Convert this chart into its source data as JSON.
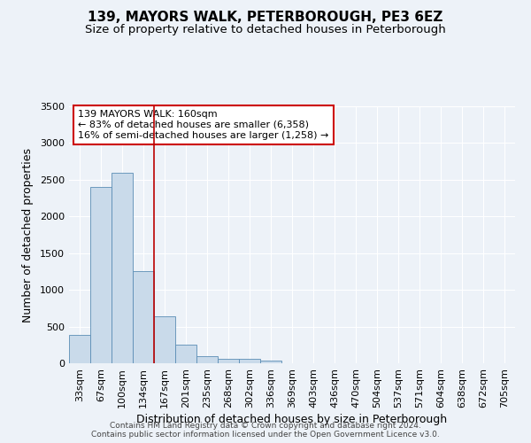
{
  "title": "139, MAYORS WALK, PETERBOROUGH, PE3 6EZ",
  "subtitle": "Size of property relative to detached houses in Peterborough",
  "xlabel": "Distribution of detached houses by size in Peterborough",
  "ylabel": "Number of detached properties",
  "footer_line1": "Contains HM Land Registry data © Crown copyright and database right 2024.",
  "footer_line2": "Contains public sector information licensed under the Open Government Licence v3.0.",
  "categories": [
    "33sqm",
    "67sqm",
    "100sqm",
    "134sqm",
    "167sqm",
    "201sqm",
    "235sqm",
    "268sqm",
    "302sqm",
    "336sqm",
    "369sqm",
    "403sqm",
    "436sqm",
    "470sqm",
    "504sqm",
    "537sqm",
    "571sqm",
    "604sqm",
    "638sqm",
    "672sqm",
    "705sqm"
  ],
  "values": [
    390,
    2400,
    2600,
    1250,
    640,
    255,
    100,
    65,
    55,
    40,
    0,
    0,
    0,
    0,
    0,
    0,
    0,
    0,
    0,
    0,
    0
  ],
  "bar_color": "#c9daea",
  "bar_edge_color": "#5b8db5",
  "vline_x": 3.5,
  "vline_color": "#bb0000",
  "annotation_text": "139 MAYORS WALK: 160sqm\n← 83% of detached houses are smaller (6,358)\n16% of semi-detached houses are larger (1,258) →",
  "annotation_box_color": "#cc0000",
  "ylim": [
    0,
    3500
  ],
  "yticks": [
    0,
    500,
    1000,
    1500,
    2000,
    2500,
    3000,
    3500
  ],
  "bg_color": "#edf2f8",
  "plot_bg_color": "#edf2f8",
  "grid_color": "#d0d8e4",
  "title_fontsize": 11,
  "subtitle_fontsize": 9.5,
  "ylabel_fontsize": 9,
  "xlabel_fontsize": 9,
  "tick_fontsize": 8,
  "annotation_fontsize": 8,
  "footer_fontsize": 6.5
}
